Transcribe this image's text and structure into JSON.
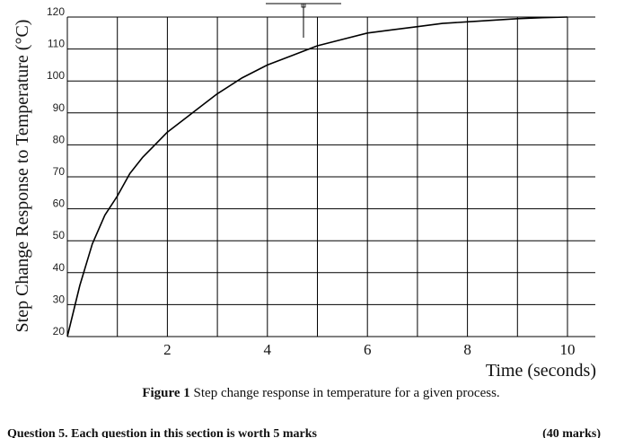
{
  "chart_data": {
    "type": "line",
    "xlabel": "Time (seconds)",
    "ylabel": "Step Change Response to Temperature (°C)",
    "xlim": [
      0,
      10
    ],
    "ylim": [
      20,
      120
    ],
    "x_ticks": [
      0,
      1,
      2,
      3,
      4,
      5,
      6,
      7,
      8,
      9,
      10
    ],
    "x_tick_labels": [
      "",
      "",
      "2",
      "",
      "4",
      "",
      "6",
      "",
      "8",
      "",
      "10"
    ],
    "y_ticks": [
      20,
      30,
      40,
      50,
      60,
      70,
      80,
      90,
      100,
      110,
      120
    ],
    "y_tick_labels": [
      "20",
      "30",
      "40",
      "50",
      "60",
      "70",
      "80",
      "90",
      "100",
      "110",
      "120"
    ],
    "grid": true,
    "series": [
      {
        "x": [
          0,
          0.25,
          0.5,
          0.75,
          1,
          1.25,
          1.5,
          1.75,
          2,
          2.5,
          3,
          3.5,
          4,
          4.5,
          5,
          5.5,
          6,
          6.5,
          7,
          7.5,
          8,
          8.5,
          9,
          9.5,
          10
        ],
        "y": [
          20,
          36,
          49,
          58,
          64,
          71,
          76,
          80,
          84,
          90,
          96,
          101,
          105,
          108,
          111,
          113,
          115,
          116,
          117,
          118,
          118.5,
          119,
          119.5,
          119.8,
          120
        ],
        "color": "#000000"
      }
    ]
  },
  "caption": {
    "figure_label": "Figure 1",
    "text": " Step change response in temperature for a given process."
  },
  "question": {
    "text": "Question 5. Each question in this section is worth 5 marks",
    "marks": "(40 marks)"
  }
}
